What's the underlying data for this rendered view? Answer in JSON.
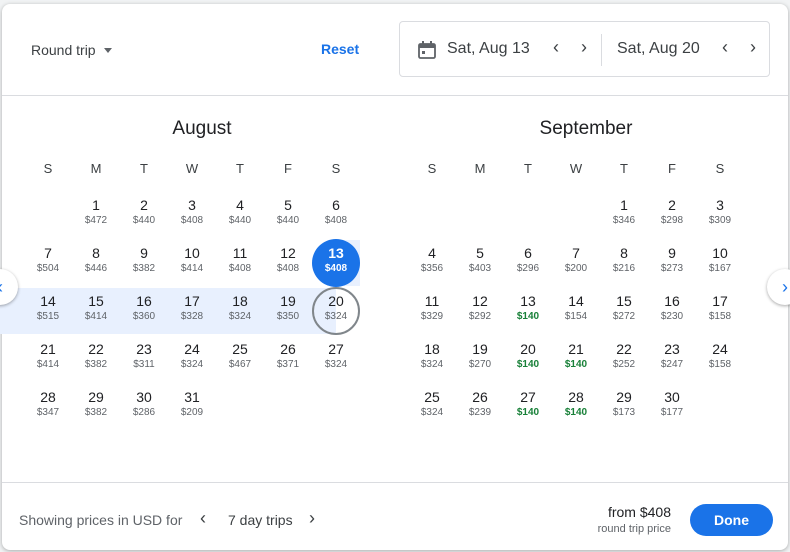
{
  "header": {
    "trip_type": "Round trip",
    "reset_label": "Reset",
    "depart_date": "Sat, Aug 13",
    "return_date": "Sat, Aug 20",
    "icons": {
      "calendar": "calendar-icon",
      "prev": "chevron-left-icon",
      "next": "chevron-right-icon"
    }
  },
  "weekdays": [
    "S",
    "M",
    "T",
    "W",
    "T",
    "F",
    "S"
  ],
  "selection": {
    "start_month": 0,
    "start_day": 13,
    "end_month": 0,
    "end_day": 20
  },
  "colors": {
    "accent": "#1a73e8",
    "cheap": "#188038",
    "range": "#e8f0fe"
  },
  "months": [
    {
      "name": "August",
      "weeks": [
        [
          null,
          {
            "day": "1",
            "price": "$472"
          },
          {
            "day": "2",
            "price": "$440"
          },
          {
            "day": "3",
            "price": "$408"
          },
          {
            "day": "4",
            "price": "$440"
          },
          {
            "day": "5",
            "price": "$440"
          },
          {
            "day": "6",
            "price": "$408"
          }
        ],
        [
          {
            "day": "7",
            "price": "$504"
          },
          {
            "day": "8",
            "price": "$446"
          },
          {
            "day": "9",
            "price": "$382"
          },
          {
            "day": "10",
            "price": "$414"
          },
          {
            "day": "11",
            "price": "$408"
          },
          {
            "day": "12",
            "price": "$408"
          },
          {
            "day": "13",
            "price": "$408"
          }
        ],
        [
          {
            "day": "14",
            "price": "$515"
          },
          {
            "day": "15",
            "price": "$414"
          },
          {
            "day": "16",
            "price": "$360"
          },
          {
            "day": "17",
            "price": "$328"
          },
          {
            "day": "18",
            "price": "$324"
          },
          {
            "day": "19",
            "price": "$350"
          },
          {
            "day": "20",
            "price": "$324"
          }
        ],
        [
          {
            "day": "21",
            "price": "$414"
          },
          {
            "day": "22",
            "price": "$382"
          },
          {
            "day": "23",
            "price": "$311"
          },
          {
            "day": "24",
            "price": "$324"
          },
          {
            "day": "25",
            "price": "$467"
          },
          {
            "day": "26",
            "price": "$371"
          },
          {
            "day": "27",
            "price": "$324"
          }
        ],
        [
          {
            "day": "28",
            "price": "$347"
          },
          {
            "day": "29",
            "price": "$382"
          },
          {
            "day": "30",
            "price": "$286"
          },
          {
            "day": "31",
            "price": "$209"
          },
          null,
          null,
          null
        ]
      ]
    },
    {
      "name": "September",
      "weeks": [
        [
          null,
          null,
          null,
          null,
          {
            "day": "1",
            "price": "$346"
          },
          {
            "day": "2",
            "price": "$298"
          },
          {
            "day": "3",
            "price": "$309"
          }
        ],
        [
          {
            "day": "4",
            "price": "$356"
          },
          {
            "day": "5",
            "price": "$403"
          },
          {
            "day": "6",
            "price": "$296"
          },
          {
            "day": "7",
            "price": "$200"
          },
          {
            "day": "8",
            "price": "$216"
          },
          {
            "day": "9",
            "price": "$273"
          },
          {
            "day": "10",
            "price": "$167"
          }
        ],
        [
          {
            "day": "11",
            "price": "$329"
          },
          {
            "day": "12",
            "price": "$292"
          },
          {
            "day": "13",
            "price": "$140",
            "low": true
          },
          {
            "day": "14",
            "price": "$154"
          },
          {
            "day": "15",
            "price": "$272"
          },
          {
            "day": "16",
            "price": "$230"
          },
          {
            "day": "17",
            "price": "$158"
          }
        ],
        [
          {
            "day": "18",
            "price": "$324"
          },
          {
            "day": "19",
            "price": "$270"
          },
          {
            "day": "20",
            "price": "$140",
            "low": true
          },
          {
            "day": "21",
            "price": "$140",
            "low": true
          },
          {
            "day": "22",
            "price": "$252"
          },
          {
            "day": "23",
            "price": "$247"
          },
          {
            "day": "24",
            "price": "$158"
          }
        ],
        [
          {
            "day": "25",
            "price": "$324"
          },
          {
            "day": "26",
            "price": "$239"
          },
          {
            "day": "27",
            "price": "$140",
            "low": true
          },
          {
            "day": "28",
            "price": "$140",
            "low": true
          },
          {
            "day": "29",
            "price": "$173"
          },
          {
            "day": "30",
            "price": "$177"
          },
          null
        ]
      ]
    }
  ],
  "footer": {
    "showing_label": "Showing prices in USD for",
    "trip_length": "7 day trips",
    "from_price": "from $408",
    "price_note": "round trip price",
    "done_label": "Done"
  }
}
